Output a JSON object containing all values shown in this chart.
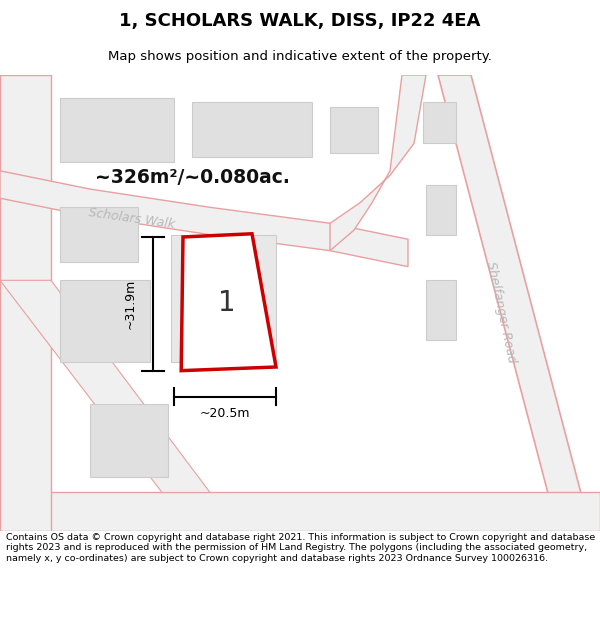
{
  "title_line1": "1, SCHOLARS WALK, DISS, IP22 4EA",
  "title_line2": "Map shows position and indicative extent of the property.",
  "footer_text": "Contains OS data © Crown copyright and database right 2021. This information is subject to Crown copyright and database rights 2023 and is reproduced with the permission of HM Land Registry. The polygons (including the associated geometry, namely x, y co-ordinates) are subject to Crown copyright and database rights 2023 Ordnance Survey 100026316.",
  "area_label": "~326m²/~0.080ac.",
  "width_label": "~20.5m",
  "height_label": "~31.9m",
  "plot_number": "1",
  "background_color": "#ffffff",
  "road_line_color": "#e8a0a0",
  "building_fill_color": "#e0e0e0",
  "building_line_color": "#cccccc",
  "plot_outline_color": "#cc0000",
  "road_fill_color": "#f0f0f0",
  "dim_line_color": "#000000",
  "street_label_color": "#b8b8b8"
}
